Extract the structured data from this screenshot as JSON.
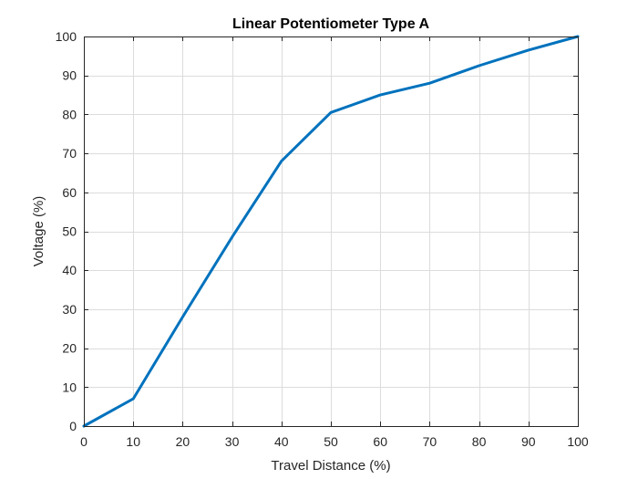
{
  "chart_data": {
    "type": "line",
    "title": "Linear Potentiometer Type A",
    "xlabel": "Travel Distance (%)",
    "ylabel": "Voltage (%)",
    "xlim": [
      0,
      100
    ],
    "ylim": [
      0,
      100
    ],
    "xticks": [
      0,
      10,
      20,
      30,
      40,
      50,
      60,
      70,
      80,
      90,
      100
    ],
    "yticks": [
      0,
      10,
      20,
      30,
      40,
      50,
      60,
      70,
      80,
      90,
      100
    ],
    "grid": true,
    "series": [
      {
        "color": "#0072BD",
        "x": [
          0,
          10,
          20,
          30,
          40,
          50,
          60,
          70,
          80,
          90,
          100
        ],
        "y": [
          0,
          7,
          28,
          48.5,
          68,
          80.5,
          85,
          88,
          92.5,
          96.5,
          100
        ]
      }
    ]
  }
}
